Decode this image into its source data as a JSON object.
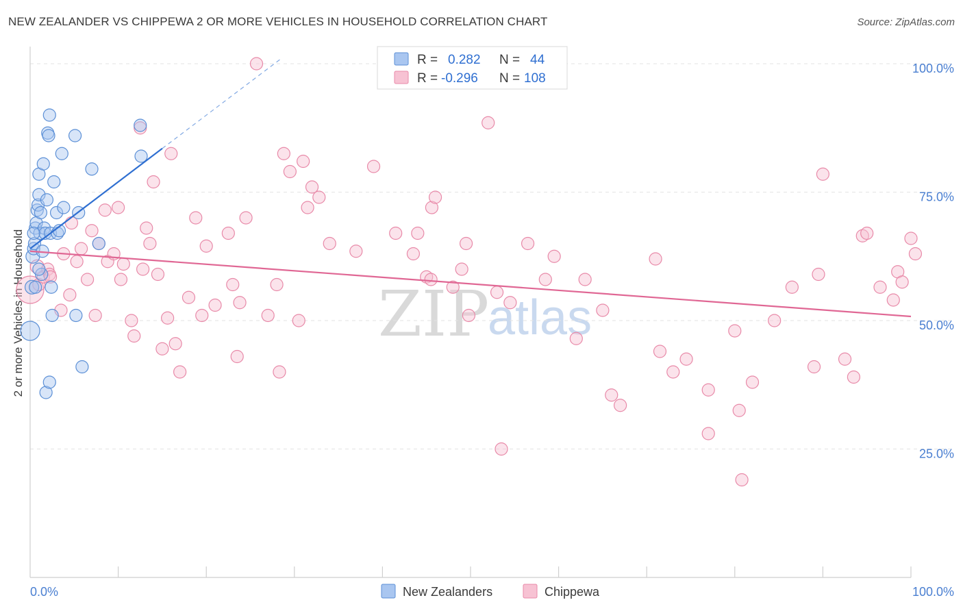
{
  "header": {
    "title": "NEW ZEALANDER VS CHIPPEWA 2 OR MORE VEHICLES IN HOUSEHOLD CORRELATION CHART",
    "source": "Source: ZipAtlas.com"
  },
  "legend": {
    "r_label": "R =",
    "n_label": "N =",
    "rows": [
      {
        "series": "New Zealanders",
        "r": "0.282",
        "n": "44"
      },
      {
        "series": "Chippewa",
        "r": "-0.296",
        "n": "108"
      }
    ]
  },
  "watermark": {
    "zip": "ZIP",
    "atlas": "atlas"
  },
  "colors": {
    "nz_fill": "#a9c6f0",
    "nz_stroke": "#5b8fd6",
    "nz_line": "#2f6fd1",
    "ch_fill": "#f7c2d3",
    "ch_stroke": "#e889a8",
    "ch_line": "#e06794",
    "grid": "#e3e3e3",
    "axis_text": "#4a7fd1"
  },
  "chart_data": {
    "type": "scatter",
    "title": "NEW ZEALANDER VS CHIPPEWA 2 OR MORE VEHICLES IN HOUSEHOLD CORRELATION CHART",
    "xlabel": "",
    "ylabel": "2 or more Vehicles in Household",
    "xlim": [
      0,
      100
    ],
    "ylim": [
      0,
      102
    ],
    "x_tick_labels": [
      {
        "value": 0,
        "label": "0.0%"
      },
      {
        "value": 100,
        "label": "100.0%"
      }
    ],
    "y_tick_labels": [
      {
        "value": 25,
        "label": "25.0%"
      },
      {
        "value": 50,
        "label": "50.0%"
      },
      {
        "value": 75,
        "label": "75.0%"
      },
      {
        "value": 100,
        "label": "100.0%"
      }
    ],
    "grid": true,
    "legend_position": "top-center",
    "series": [
      {
        "name": "New Zealanders",
        "r": 0.282,
        "n": 44,
        "trend": {
          "x0": 0,
          "y0": 64.0,
          "x1": 15.0,
          "y1": 83.5,
          "dashed_to_x": 28.5,
          "dashed_to_y": 101
        },
        "points": [
          [
            0.0,
            48.0,
            14
          ],
          [
            0.2,
            56.5,
            10
          ],
          [
            0.3,
            62.5,
            10
          ],
          [
            0.4,
            64.0,
            9
          ],
          [
            0.5,
            65.0,
            9
          ],
          [
            0.6,
            68.0,
            9
          ],
          [
            0.7,
            69.0,
            9
          ],
          [
            0.8,
            71.5,
            9
          ],
          [
            0.9,
            72.5,
            9
          ],
          [
            1.0,
            74.5,
            9
          ],
          [
            1.0,
            78.5,
            9
          ],
          [
            1.1,
            67.0,
            9
          ],
          [
            1.2,
            71.0,
            9
          ],
          [
            1.3,
            59.0,
            9
          ],
          [
            1.4,
            63.5,
            9
          ],
          [
            1.5,
            80.5,
            9
          ],
          [
            1.6,
            68.0,
            9
          ],
          [
            1.7,
            67.0,
            9
          ],
          [
            1.8,
            36.0,
            9
          ],
          [
            1.9,
            73.5,
            9
          ],
          [
            2.0,
            86.5,
            9
          ],
          [
            2.1,
            86.0,
            9
          ],
          [
            2.2,
            38.0,
            9
          ],
          [
            2.2,
            90.0,
            9
          ],
          [
            2.3,
            67.0,
            9
          ],
          [
            2.4,
            56.5,
            9
          ],
          [
            2.5,
            51.0,
            9
          ],
          [
            2.7,
            77.0,
            9
          ],
          [
            3.0,
            71.0,
            9
          ],
          [
            3.1,
            67.0,
            9
          ],
          [
            3.3,
            67.5,
            9
          ],
          [
            3.6,
            82.5,
            9
          ],
          [
            3.8,
            72.0,
            9
          ],
          [
            5.1,
            86.0,
            9
          ],
          [
            5.2,
            51.0,
            9
          ],
          [
            5.5,
            71.0,
            9
          ],
          [
            5.9,
            41.0,
            9
          ],
          [
            7.0,
            79.5,
            9
          ],
          [
            7.8,
            65.0,
            9
          ],
          [
            12.5,
            88.0,
            9
          ],
          [
            12.6,
            82.0,
            9
          ],
          [
            0.6,
            56.5,
            9
          ],
          [
            1.0,
            60.0,
            9
          ],
          [
            0.4,
            67.0,
            9
          ]
        ]
      },
      {
        "name": "Chippewa",
        "r": -0.296,
        "n": 108,
        "trend": {
          "x0": 0,
          "y0": 63.5,
          "x1": 100,
          "y1": 50.8
        },
        "points": [
          [
            0.0,
            56.0,
            20
          ],
          [
            0.8,
            60.5,
            10
          ],
          [
            1.0,
            57.0,
            9
          ],
          [
            1.5,
            58.5,
            9
          ],
          [
            2.0,
            60.0,
            9
          ],
          [
            2.2,
            59.0,
            9
          ],
          [
            2.3,
            58.5,
            9
          ],
          [
            3.5,
            52.0,
            9
          ],
          [
            3.8,
            63.0,
            9
          ],
          [
            4.5,
            55.0,
            9
          ],
          [
            4.7,
            69.0,
            9
          ],
          [
            5.3,
            61.5,
            9
          ],
          [
            5.8,
            64.0,
            9
          ],
          [
            6.5,
            58.0,
            9
          ],
          [
            7.0,
            67.5,
            9
          ],
          [
            7.4,
            51.0,
            9
          ],
          [
            7.8,
            65.0,
            9
          ],
          [
            8.5,
            71.5,
            9
          ],
          [
            8.8,
            61.5,
            9
          ],
          [
            9.5,
            63.0,
            9
          ],
          [
            10.0,
            72.0,
            9
          ],
          [
            10.3,
            58.0,
            9
          ],
          [
            10.6,
            61.0,
            9
          ],
          [
            11.5,
            50.0,
            9
          ],
          [
            11.8,
            47.0,
            9
          ],
          [
            12.5,
            87.5,
            9
          ],
          [
            12.8,
            60.0,
            9
          ],
          [
            13.2,
            68.0,
            9
          ],
          [
            13.6,
            65.0,
            9
          ],
          [
            14.0,
            77.0,
            9
          ],
          [
            14.5,
            59.0,
            9
          ],
          [
            15.0,
            44.5,
            9
          ],
          [
            15.6,
            50.5,
            9
          ],
          [
            16.0,
            82.5,
            9
          ],
          [
            16.5,
            45.5,
            9
          ],
          [
            17.0,
            40.0,
            9
          ],
          [
            18.0,
            54.5,
            9
          ],
          [
            18.8,
            70.0,
            9
          ],
          [
            19.5,
            51.0,
            9
          ],
          [
            20.0,
            64.5,
            9
          ],
          [
            21.0,
            53.0,
            9
          ],
          [
            22.5,
            67.0,
            9
          ],
          [
            23.0,
            57.0,
            9
          ],
          [
            23.5,
            43.0,
            9
          ],
          [
            23.8,
            53.5,
            9
          ],
          [
            24.5,
            70.0,
            9
          ],
          [
            25.7,
            100.0,
            9
          ],
          [
            27.0,
            51.0,
            9
          ],
          [
            28.0,
            57.0,
            9
          ],
          [
            28.3,
            40.0,
            9
          ],
          [
            28.8,
            82.5,
            9
          ],
          [
            29.5,
            79.0,
            9
          ],
          [
            30.5,
            50.0,
            9
          ],
          [
            31.0,
            81.0,
            9
          ],
          [
            31.5,
            72.0,
            9
          ],
          [
            32.0,
            76.0,
            9
          ],
          [
            32.8,
            74.0,
            9
          ],
          [
            34.0,
            65.0,
            9
          ],
          [
            37.0,
            63.5,
            9
          ],
          [
            39.0,
            80.0,
            9
          ],
          [
            41.5,
            67.0,
            9
          ],
          [
            43.5,
            63.0,
            9
          ],
          [
            44.0,
            67.0,
            9
          ],
          [
            45.0,
            58.5,
            9
          ],
          [
            45.5,
            58.0,
            9
          ],
          [
            45.6,
            72.0,
            9
          ],
          [
            46.0,
            74.0,
            9
          ],
          [
            48.0,
            56.5,
            9
          ],
          [
            49.0,
            60.0,
            9
          ],
          [
            49.5,
            65.0,
            9
          ],
          [
            49.8,
            51.0,
            9
          ],
          [
            52.0,
            88.5,
            9
          ],
          [
            53.0,
            55.5,
            9
          ],
          [
            53.5,
            25.0,
            9
          ],
          [
            54.5,
            53.5,
            9
          ],
          [
            56.5,
            65.0,
            9
          ],
          [
            58.5,
            58.0,
            9
          ],
          [
            59.5,
            62.5,
            9
          ],
          [
            62.0,
            46.5,
            9
          ],
          [
            63.0,
            58.0,
            9
          ],
          [
            65.0,
            52.0,
            9
          ],
          [
            66.0,
            35.5,
            9
          ],
          [
            67.0,
            33.5,
            9
          ],
          [
            71.0,
            62.0,
            9
          ],
          [
            71.5,
            44.0,
            9
          ],
          [
            73.0,
            40.0,
            9
          ],
          [
            74.5,
            42.5,
            9
          ],
          [
            77.0,
            36.5,
            9
          ],
          [
            77.0,
            28.0,
            9
          ],
          [
            80.0,
            48.0,
            9
          ],
          [
            80.5,
            32.5,
            9
          ],
          [
            80.8,
            19.0,
            9
          ],
          [
            82.0,
            38.0,
            9
          ],
          [
            84.5,
            50.0,
            9
          ],
          [
            86.5,
            56.5,
            9
          ],
          [
            89.0,
            41.0,
            9
          ],
          [
            89.5,
            59.0,
            9
          ],
          [
            90.0,
            78.5,
            9
          ],
          [
            92.5,
            42.5,
            9
          ],
          [
            93.5,
            39.0,
            9
          ],
          [
            94.5,
            66.5,
            9
          ],
          [
            95.0,
            67.0,
            9
          ],
          [
            96.5,
            56.5,
            9
          ],
          [
            98.0,
            54.0,
            9
          ],
          [
            98.5,
            59.5,
            9
          ],
          [
            99.0,
            57.5,
            9
          ],
          [
            100.0,
            66.0,
            9
          ],
          [
            100.5,
            63.0,
            9
          ]
        ]
      }
    ]
  }
}
